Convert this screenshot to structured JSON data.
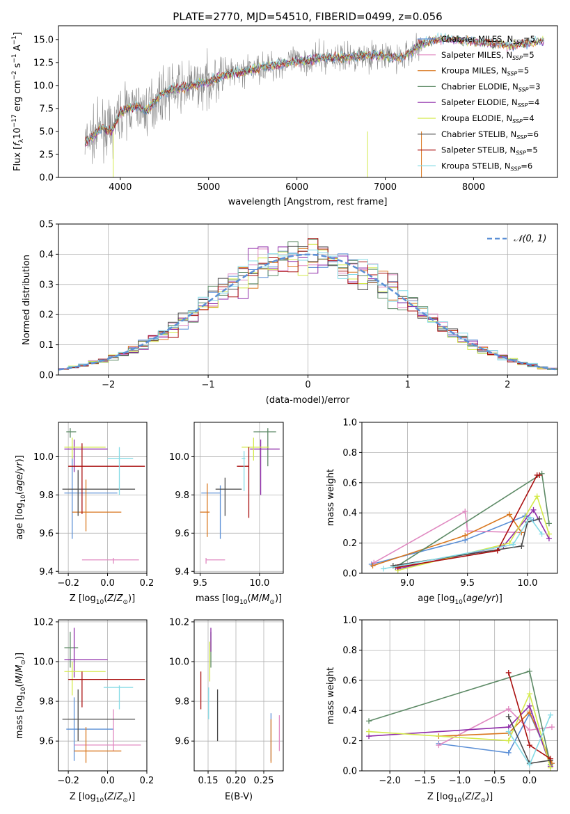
{
  "colors": {
    "chabrier_miles": "#5b8fd6",
    "salpeter_miles": "#e089c1",
    "kroupa_miles": "#d9771e",
    "chabrier_elodie": "#5d8a66",
    "salpeter_elodie": "#8e2aa8",
    "kroupa_elodie": "#d4ea4b",
    "chabrier_stelib": "#4a4a4a",
    "salpeter_stelib": "#aa1010",
    "kroupa_stelib": "#85dbe6"
  },
  "chart_data": [
    {
      "type": "line",
      "id": "spectrum",
      "title": "PLATE=2770, MJD=54510, FIBERID=0499, z=0.056",
      "xlabel": "wavelength [Angstrom, rest frame]",
      "ylabel": "Flux [f_λ 10^-17 erg cm^-2 s^-1 A^-1]",
      "xlim": [
        3300,
        8950
      ],
      "ylim": [
        0,
        16.5
      ],
      "xticks": [
        4000,
        5000,
        6000,
        7000,
        8000
      ],
      "yticks": [
        0.0,
        2.5,
        5.0,
        7.5,
        10.0,
        12.5,
        15.0
      ],
      "grid": false,
      "legend_position": "top-right",
      "model_curve": {
        "x": [
          3600,
          3700,
          3800,
          3900,
          4000,
          4100,
          4200,
          4300,
          4400,
          4500,
          4600,
          4700,
          4800,
          4900,
          5000,
          5200,
          5400,
          5600,
          5800,
          6000,
          6200,
          6400,
          6600,
          6800,
          7000,
          7200,
          7400,
          7600,
          7800,
          8000,
          8200,
          8400,
          8600,
          8800
        ],
        "y": [
          3.8,
          4.5,
          5.5,
          5.0,
          7.0,
          7.6,
          7.7,
          7.2,
          8.5,
          9.2,
          9.6,
          9.7,
          9.9,
          10.2,
          10.4,
          11.2,
          11.5,
          12.0,
          12.3,
          12.6,
          12.9,
          13.0,
          13.1,
          13.3,
          13.2,
          13.0,
          14.5,
          15.0,
          15.0,
          14.8,
          14.6,
          14.3,
          14.6,
          14.9
        ]
      },
      "series": [
        {
          "name": "Chabrier MILES, N_SSP=5",
          "color_key": "chabrier_miles"
        },
        {
          "name": "Salpeter MILES, N_SSP=5",
          "color_key": "salpeter_miles"
        },
        {
          "name": "Kroupa MILES, N_SSP=5",
          "color_key": "kroupa_miles"
        },
        {
          "name": "Chabrier ELODIE, N_SSP=3",
          "color_key": "chabrier_elodie"
        },
        {
          "name": "Salpeter ELODIE, N_SSP=4",
          "color_key": "salpeter_elodie"
        },
        {
          "name": "Kroupa ELODIE, N_SSP=4",
          "color_key": "kroupa_elodie"
        },
        {
          "name": "Chabrier STELIB, N_SSP=6",
          "color_key": "chabrier_stelib"
        },
        {
          "name": "Salpeter STELIB, N_SSP=5",
          "color_key": "salpeter_stelib"
        },
        {
          "name": "Kroupa STELIB, N_SSP=6",
          "color_key": "kroupa_stelib"
        }
      ]
    },
    {
      "type": "line",
      "id": "residuals",
      "xlabel": "(data-model)/error",
      "ylabel": "Normed distribution",
      "xlim": [
        -2.5,
        2.5
      ],
      "ylim": [
        0,
        0.5
      ],
      "xticks": [
        -2,
        -1,
        0,
        1,
        2
      ],
      "yticks": [
        0.0,
        0.1,
        0.2,
        0.3,
        0.4,
        0.5
      ],
      "grid": true,
      "legend_position": "top-right",
      "reference_curve": "𝒩(0, 1)",
      "bin_width": 0.1
    },
    {
      "type": "scatter",
      "id": "age_vs_Z",
      "xlabel": "Z [log10(Z/Z⊙)]",
      "ylabel": "age  [log10(age/yr)]",
      "xlim": [
        -0.25,
        0.2
      ],
      "ylim": [
        9.39,
        10.18
      ],
      "xticks": [
        -0.2,
        0.0,
        0.2
      ],
      "yticks": [
        9.4,
        9.6,
        9.8,
        10.0
      ],
      "grid": true,
      "points": [
        {
          "color_key": "chabrier_miles",
          "x": -0.18,
          "xmin": -0.22,
          "xmax": 0.05,
          "y": 9.81,
          "ymin": 9.57,
          "ymax": 10.0
        },
        {
          "color_key": "salpeter_miles",
          "x": 0.03,
          "xmin": -0.13,
          "xmax": 0.16,
          "y": 9.46,
          "ymin": 9.44,
          "ymax": 9.47
        },
        {
          "color_key": "kroupa_miles",
          "x": -0.11,
          "xmin": -0.18,
          "xmax": 0.07,
          "y": 9.71,
          "ymin": 9.61,
          "ymax": 9.88
        },
        {
          "color_key": "chabrier_elodie",
          "x": -0.19,
          "xmin": -0.21,
          "xmax": -0.16,
          "y": 10.13,
          "ymin": 10.1,
          "ymax": 10.15
        },
        {
          "color_key": "salpeter_elodie",
          "x": -0.17,
          "xmin": -0.22,
          "xmax": 0.0,
          "y": 10.04,
          "ymin": 9.92,
          "ymax": 10.09
        },
        {
          "color_key": "kroupa_elodie",
          "x": -0.18,
          "xmin": -0.22,
          "xmax": -0.01,
          "y": 10.05,
          "ymin": 9.99,
          "ymax": 10.1
        },
        {
          "color_key": "chabrier_stelib",
          "x": -0.15,
          "xmin": -0.23,
          "xmax": 0.14,
          "y": 9.83,
          "ymin": 9.69,
          "ymax": 9.93
        },
        {
          "color_key": "salpeter_stelib",
          "x": -0.13,
          "xmin": -0.2,
          "xmax": 0.19,
          "y": 9.95,
          "ymin": 9.7,
          "ymax": 10.07
        },
        {
          "color_key": "kroupa_stelib",
          "x": 0.06,
          "xmin": 0.0,
          "xmax": 0.13,
          "y": 9.99,
          "ymin": 9.8,
          "ymax": 10.05
        }
      ]
    },
    {
      "type": "scatter",
      "id": "age_vs_mass",
      "xlabel": "mass [log10(M/M⊙)]",
      "ylabel": "",
      "xlim": [
        9.45,
        10.2
      ],
      "ylim": [
        9.39,
        10.18
      ],
      "xticks": [
        9.5,
        10.0
      ],
      "yticks": [
        9.4,
        9.6,
        9.8,
        10.0
      ],
      "grid": true,
      "points": [
        {
          "color_key": "chabrier_miles",
          "x": 9.67,
          "xmin": 9.51,
          "xmax": 9.67,
          "y": 9.81,
          "ymin": 9.57,
          "ymax": 9.85
        },
        {
          "color_key": "salpeter_miles",
          "x": 9.55,
          "xmin": 9.55,
          "xmax": 9.71,
          "y": 9.46,
          "ymin": 9.44,
          "ymax": 9.47
        },
        {
          "color_key": "kroupa_miles",
          "x": 9.56,
          "xmin": 9.5,
          "xmax": 9.58,
          "y": 9.71,
          "ymin": 9.58,
          "ymax": 9.86
        },
        {
          "color_key": "chabrier_elodie",
          "x": 10.07,
          "xmin": 9.95,
          "xmax": 10.14,
          "y": 10.13,
          "ymin": 9.95,
          "ymax": 10.15
        },
        {
          "color_key": "salpeter_elodie",
          "x": 10.01,
          "xmin": 9.92,
          "xmax": 10.17,
          "y": 10.04,
          "ymin": 9.8,
          "ymax": 10.09
        },
        {
          "color_key": "kroupa_elodie",
          "x": 9.95,
          "xmin": 9.85,
          "xmax": 10.08,
          "y": 10.05,
          "ymin": 9.98,
          "ymax": 10.1
        },
        {
          "color_key": "chabrier_stelib",
          "x": 9.71,
          "xmin": 9.63,
          "xmax": 9.85,
          "y": 9.83,
          "ymin": 9.69,
          "ymax": 9.89
        },
        {
          "color_key": "salpeter_stelib",
          "x": 9.91,
          "xmin": 9.81,
          "xmax": 9.91,
          "y": 9.95,
          "ymin": 9.68,
          "ymax": 10.05
        },
        {
          "color_key": "kroupa_stelib",
          "x": 9.87,
          "xmin": 9.85,
          "xmax": 9.88,
          "y": 9.99,
          "ymin": 9.82,
          "ymax": 10.03
        }
      ]
    },
    {
      "type": "line",
      "id": "weight_vs_age",
      "xlabel": "age  [log10(age/yr)]",
      "ylabel": "mass weight",
      "xlim": [
        8.62,
        10.25
      ],
      "ylim": [
        0,
        1.0
      ],
      "xticks": [
        9.0,
        9.5,
        10.0
      ],
      "yticks": [
        0.0,
        0.2,
        0.4,
        0.6,
        0.8,
        1.0
      ],
      "grid": true,
      "series": [
        {
          "color_key": "chabrier_miles",
          "x": [
            8.7,
            9.48,
            9.98,
            10.05
          ],
          "y": [
            0.06,
            0.22,
            0.38,
            0.35
          ]
        },
        {
          "color_key": "salpeter_miles",
          "x": [
            8.72,
            9.48,
            9.5,
            9.95
          ],
          "y": [
            0.07,
            0.41,
            0.28,
            0.27
          ]
        },
        {
          "color_key": "kroupa_miles",
          "x": [
            8.71,
            9.48,
            9.85,
            9.95
          ],
          "y": [
            0.05,
            0.25,
            0.39,
            0.27
          ]
        },
        {
          "color_key": "chabrier_elodie",
          "x": [
            8.9,
            10.12,
            10.18
          ],
          "y": [
            0.04,
            0.66,
            0.33
          ]
        },
        {
          "color_key": "salpeter_elodie",
          "x": [
            8.92,
            9.8,
            10.05,
            10.18
          ],
          "y": [
            0.03,
            0.18,
            0.42,
            0.23
          ]
        },
        {
          "color_key": "kroupa_elodie",
          "x": [
            8.92,
            9.85,
            10.08,
            10.18
          ],
          "y": [
            0.02,
            0.2,
            0.51,
            0.26
          ]
        },
        {
          "color_key": "chabrier_stelib",
          "x": [
            8.88,
            9.95,
            10.0,
            10.1
          ],
          "y": [
            0.05,
            0.18,
            0.34,
            0.36
          ]
        },
        {
          "color_key": "salpeter_stelib",
          "x": [
            8.92,
            9.75,
            10.08,
            10.1
          ],
          "y": [
            0.04,
            0.15,
            0.65,
            0.65
          ]
        },
        {
          "color_key": "kroupa_stelib",
          "x": [
            8.8,
            9.88,
            10.02,
            10.12
          ],
          "y": [
            0.03,
            0.19,
            0.37,
            0.26
          ]
        }
      ]
    },
    {
      "type": "scatter",
      "id": "mass_vs_Z",
      "xlabel": "Z [log10(Z/Z⊙)]",
      "ylabel": "mass [log10(M/M⊙)]",
      "xlim": [
        -0.25,
        0.2
      ],
      "ylim": [
        9.45,
        10.21
      ],
      "xticks": [
        -0.2,
        0.0,
        0.2
      ],
      "yticks": [
        9.6,
        9.8,
        10.0,
        10.2
      ],
      "grid": true,
      "points": [
        {
          "color_key": "chabrier_miles",
          "x": -0.17,
          "xmin": -0.21,
          "xmax": 0.03,
          "y": 9.66,
          "ymin": 9.5,
          "ymax": 9.82
        },
        {
          "color_key": "salpeter_miles",
          "x": 0.03,
          "xmin": -0.17,
          "xmax": 0.17,
          "y": 9.58,
          "ymin": 9.55,
          "ymax": 9.76
        },
        {
          "color_key": "kroupa_miles",
          "x": -0.11,
          "xmin": -0.17,
          "xmax": 0.07,
          "y": 9.55,
          "ymin": 9.49,
          "ymax": 9.67
        },
        {
          "color_key": "chabrier_elodie",
          "x": -0.19,
          "xmin": -0.22,
          "xmax": -0.15,
          "y": 10.07,
          "ymin": 9.97,
          "ymax": 10.15
        },
        {
          "color_key": "salpeter_elodie",
          "x": -0.17,
          "xmin": -0.22,
          "xmax": 0.0,
          "y": 10.01,
          "ymin": 9.92,
          "ymax": 10.17
        },
        {
          "color_key": "kroupa_elodie",
          "x": -0.18,
          "xmin": -0.22,
          "xmax": -0.01,
          "y": 9.95,
          "ymin": 9.83,
          "ymax": 10.0
        },
        {
          "color_key": "chabrier_stelib",
          "x": -0.15,
          "xmin": -0.23,
          "xmax": 0.14,
          "y": 9.71,
          "ymin": 9.6,
          "ymax": 9.86
        },
        {
          "color_key": "salpeter_stelib",
          "x": -0.13,
          "xmin": -0.2,
          "xmax": 0.19,
          "y": 9.91,
          "ymin": 9.77,
          "ymax": 9.95
        },
        {
          "color_key": "kroupa_stelib",
          "x": 0.06,
          "xmin": -0.02,
          "xmax": 0.13,
          "y": 9.87,
          "ymin": 9.76,
          "ymax": 9.88
        }
      ]
    },
    {
      "type": "scatter",
      "id": "mass_vs_ebv",
      "xlabel": "E(B-V)",
      "ylabel": "",
      "xlim": [
        0.125,
        0.285
      ],
      "ylim": [
        9.45,
        10.21
      ],
      "xticks": [
        0.15,
        0.2,
        0.25
      ],
      "yticks": [
        9.6,
        9.8,
        10.0,
        10.2
      ],
      "grid": true,
      "points": [
        {
          "color_key": "chabrier_miles",
          "x": 0.263,
          "y": 9.66,
          "ymin": 9.5,
          "ymax": 9.74
        },
        {
          "color_key": "salpeter_miles",
          "x": 0.278,
          "y": 9.58,
          "ymin": 9.55,
          "ymax": 9.73
        },
        {
          "color_key": "kroupa_miles",
          "x": 0.263,
          "y": 9.55,
          "ymin": 9.49,
          "ymax": 9.71
        },
        {
          "color_key": "chabrier_elodie",
          "x": 0.155,
          "y": 10.07,
          "ymin": 9.97,
          "ymax": 10.15
        },
        {
          "color_key": "salpeter_elodie",
          "x": 0.155,
          "y": 10.11,
          "ymin": 10.05,
          "ymax": 10.17
        },
        {
          "color_key": "kroupa_elodie",
          "x": 0.153,
          "y": 10.02,
          "ymin": 9.9,
          "ymax": 10.1
        },
        {
          "color_key": "chabrier_stelib",
          "x": 0.167,
          "y": 9.75,
          "ymin": 9.6,
          "ymax": 9.86
        },
        {
          "color_key": "salpeter_stelib",
          "x": 0.137,
          "y": 9.86,
          "ymin": 9.76,
          "ymax": 9.95
        },
        {
          "color_key": "kroupa_stelib",
          "x": 0.151,
          "y": 9.8,
          "ymin": 9.71,
          "ymax": 9.87
        }
      ]
    },
    {
      "type": "line",
      "id": "weight_vs_Z",
      "xlabel": "Z [log10(Z/Z⊙)]",
      "ylabel": "mass weight",
      "xlim": [
        -2.4,
        0.4
      ],
      "ylim": [
        0,
        1.0
      ],
      "xticks": [
        -2.0,
        -1.5,
        -1.0,
        -0.5,
        0.0
      ],
      "yticks": [
        0.0,
        0.2,
        0.4,
        0.6,
        0.8,
        1.0
      ],
      "grid": true,
      "series": [
        {
          "color_key": "chabrier_miles",
          "x": [
            -1.3,
            -0.3,
            0.0,
            0.32
          ],
          "y": [
            0.18,
            0.12,
            0.38,
            0.05
          ]
        },
        {
          "color_key": "salpeter_miles",
          "x": [
            -1.3,
            -0.3,
            0.0,
            0.32
          ],
          "y": [
            0.17,
            0.41,
            0.27,
            0.29
          ]
        },
        {
          "color_key": "kroupa_miles",
          "x": [
            -1.3,
            -0.3,
            0.0,
            0.32
          ],
          "y": [
            0.23,
            0.25,
            0.39,
            0.05
          ]
        },
        {
          "color_key": "chabrier_elodie",
          "x": [
            -2.3,
            0.0,
            0.3
          ],
          "y": [
            0.33,
            0.66,
            0.04
          ]
        },
        {
          "color_key": "salpeter_elodie",
          "x": [
            -2.3,
            -0.3,
            0.0,
            0.3
          ],
          "y": [
            0.23,
            0.29,
            0.43,
            0.03
          ]
        },
        {
          "color_key": "kroupa_elodie",
          "x": [
            -2.3,
            -0.3,
            0.0,
            0.3
          ],
          "y": [
            0.26,
            0.2,
            0.51,
            0.02
          ]
        },
        {
          "color_key": "chabrier_stelib",
          "x": [
            -0.3,
            0.0,
            0.3
          ],
          "y": [
            0.36,
            0.05,
            0.07
          ]
        },
        {
          "color_key": "salpeter_stelib",
          "x": [
            -0.3,
            0.0,
            0.3
          ],
          "y": [
            0.65,
            0.17,
            0.08
          ]
        },
        {
          "color_key": "kroupa_stelib",
          "x": [
            -0.3,
            0.0,
            0.3
          ],
          "y": [
            0.26,
            0.04,
            0.37
          ]
        }
      ]
    }
  ]
}
